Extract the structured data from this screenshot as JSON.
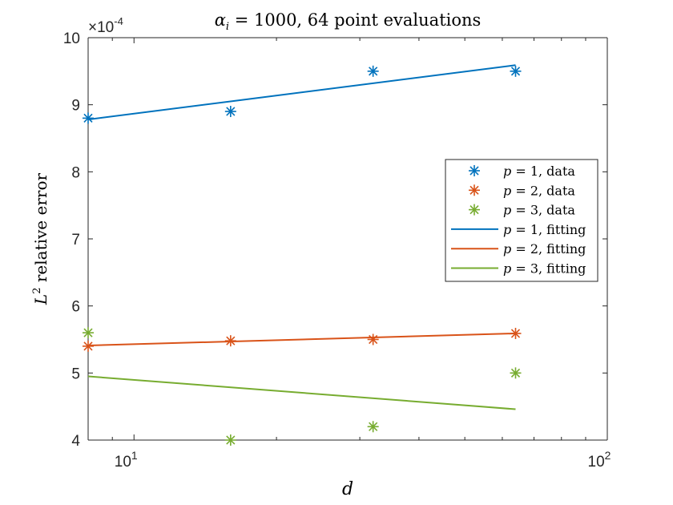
{
  "chart_data": {
    "type": "scatter",
    "title": {
      "prefix": "α",
      "sub": "i",
      "rest": " = 1000, 64 point evaluations"
    },
    "xlabel": "d",
    "ylabel": {
      "main": "L",
      "sup": "2",
      "rest": " relative error"
    },
    "xscale": "log",
    "xlim": [
      8,
      100
    ],
    "ylim": [
      0.0004,
      0.001
    ],
    "y_multiplier_label": {
      "base": "×10",
      "exp": "-4"
    },
    "x_ticks": [
      {
        "value": 10,
        "base": "10",
        "exp": "1"
      },
      {
        "value": 100,
        "base": "10",
        "exp": "2"
      }
    ],
    "y_ticks": [
      {
        "value": 0.0004,
        "label": "4"
      },
      {
        "value": 0.0005,
        "label": "5"
      },
      {
        "value": 0.0006,
        "label": "6"
      },
      {
        "value": 0.0007,
        "label": "7"
      },
      {
        "value": 0.0008,
        "label": "8"
      },
      {
        "value": 0.0009,
        "label": "9"
      },
      {
        "value": 0.001,
        "label": "10"
      }
    ],
    "series": [
      {
        "name": "p = 1, data",
        "kind": "marker",
        "color": "#0072BD",
        "x": [
          8,
          16,
          32,
          64
        ],
        "y": [
          0.00088,
          0.00089,
          0.00095,
          0.00095
        ]
      },
      {
        "name": "p = 2, data",
        "kind": "marker",
        "color": "#D95319",
        "x": [
          8,
          16,
          32,
          64
        ],
        "y": [
          0.00054,
          0.000548,
          0.00055,
          0.000559
        ]
      },
      {
        "name": "p = 3, data",
        "kind": "marker",
        "color": "#77AC30",
        "x": [
          8,
          16,
          32,
          64
        ],
        "y": [
          0.00056,
          0.0004,
          0.00042,
          0.0005
        ]
      },
      {
        "name": "p = 1, fitting",
        "kind": "line",
        "color": "#0072BD",
        "x": [
          8,
          64
        ],
        "y": [
          0.000878,
          0.000959
        ]
      },
      {
        "name": "p = 2, fitting",
        "kind": "line",
        "color": "#D95319",
        "x": [
          8,
          64
        ],
        "y": [
          0.000541,
          0.000559
        ]
      },
      {
        "name": "p = 3, fitting",
        "kind": "line",
        "color": "#77AC30",
        "x": [
          8,
          64
        ],
        "y": [
          0.000495,
          0.000446
        ]
      }
    ],
    "legend": {
      "placement": "right",
      "entries": [
        {
          "var": "p",
          "rest": " = 1, data"
        },
        {
          "var": "p",
          "rest": " = 2, data"
        },
        {
          "var": "p",
          "rest": " = 3, data"
        },
        {
          "var": "p",
          "rest": " = 1, fitting"
        },
        {
          "var": "p",
          "rest": " = 2, fitting"
        },
        {
          "var": "p",
          "rest": " = 3, fitting"
        }
      ]
    },
    "grid": false
  }
}
